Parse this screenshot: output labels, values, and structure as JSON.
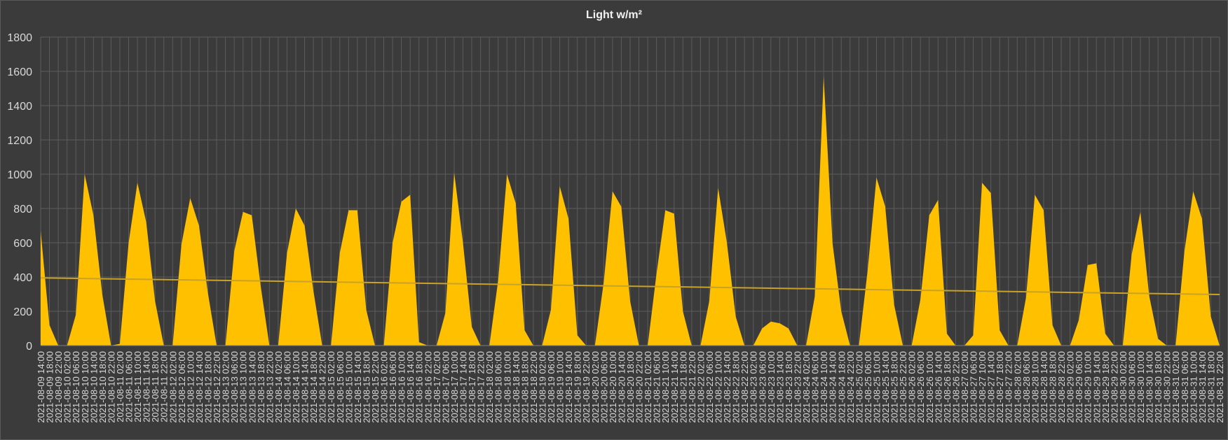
{
  "chart_data": {
    "type": "area",
    "title": "Light w/m²",
    "xlabel": "",
    "ylabel": "",
    "ylim": [
      0,
      1800
    ],
    "yticks": [
      0,
      200,
      400,
      600,
      800,
      1000,
      1200,
      1400,
      1600,
      1800
    ],
    "grid": true,
    "legend": "none",
    "colors": {
      "area": "#FFC000",
      "trendline": "#C9A227",
      "grid": "#5c5c5c",
      "text": "#d9d9d9",
      "background": "#3b3b3b"
    },
    "categories": [
      "2021-08-09 14:00",
      "2021-08-09 18:00",
      "2021-08-09 22:00",
      "2021-08-10 02:00",
      "2021-08-10 06:00",
      "2021-08-10 10:00",
      "2021-08-10 14:00",
      "2021-08-10 18:00",
      "2021-08-10 22:00",
      "2021-08-11 02:00",
      "2021-08-11 06:00",
      "2021-08-11 10:00",
      "2021-08-11 14:00",
      "2021-08-11 18:00",
      "2021-08-11 22:00",
      "2021-08-12 02:00",
      "2021-08-12 06:00",
      "2021-08-12 10:00",
      "2021-08-12 14:00",
      "2021-08-12 18:00",
      "2021-08-12 22:00",
      "2021-08-13 02:00",
      "2021-08-13 06:00",
      "2021-08-13 10:00",
      "2021-08-13 14:00",
      "2021-08-13 18:00",
      "2021-08-13 22:00",
      "2021-08-14 02:00",
      "2021-08-14 06:00",
      "2021-08-14 10:00",
      "2021-08-14 14:00",
      "2021-08-14 18:00",
      "2021-08-14 22:00",
      "2021-08-15 02:00",
      "2021-08-15 06:00",
      "2021-08-15 10:00",
      "2021-08-15 14:00",
      "2021-08-15 18:00",
      "2021-08-15 22:00",
      "2021-08-16 02:00",
      "2021-08-16 06:00",
      "2021-08-16 10:00",
      "2021-08-16 14:00",
      "2021-08-16 18:00",
      "2021-08-16 22:00",
      "2021-08-17 02:00",
      "2021-08-17 06:00",
      "2021-08-17 10:00",
      "2021-08-17 14:00",
      "2021-08-17 18:00",
      "2021-08-17 22:00",
      "2021-08-18 02:00",
      "2021-08-18 06:00",
      "2021-08-18 10:00",
      "2021-08-18 14:00",
      "2021-08-18 18:00",
      "2021-08-18 22:00",
      "2021-08-19 02:00",
      "2021-08-19 06:00",
      "2021-08-19 10:00",
      "2021-08-19 14:00",
      "2021-08-19 18:00",
      "2021-08-19 22:00",
      "2021-08-20 02:00",
      "2021-08-20 06:00",
      "2021-08-20 10:00",
      "2021-08-20 14:00",
      "2021-08-20 18:00",
      "2021-08-20 22:00",
      "2021-08-21 02:00",
      "2021-08-21 06:00",
      "2021-08-21 10:00",
      "2021-08-21 14:00",
      "2021-08-21 18:00",
      "2021-08-21 22:00",
      "2021-08-22 02:00",
      "2021-08-22 06:00",
      "2021-08-22 10:00",
      "2021-08-22 14:00",
      "2021-08-22 18:00",
      "2021-08-22 22:00",
      "2021-08-23 02:00",
      "2021-08-23 06:00",
      "2021-08-23 10:00",
      "2021-08-23 14:00",
      "2021-08-23 18:00",
      "2021-08-23 22:00",
      "2021-08-24 02:00",
      "2021-08-24 06:00",
      "2021-08-24 10:00",
      "2021-08-24 14:00",
      "2021-08-24 18:00",
      "2021-08-24 22:00",
      "2021-08-25 02:00",
      "2021-08-25 06:00",
      "2021-08-25 10:00",
      "2021-08-25 14:00",
      "2021-08-25 18:00",
      "2021-08-25 22:00",
      "2021-08-26 02:00",
      "2021-08-26 06:00",
      "2021-08-26 10:00",
      "2021-08-26 14:00",
      "2021-08-26 18:00",
      "2021-08-26 22:00",
      "2021-08-27 02:00",
      "2021-08-27 06:00",
      "2021-08-27 10:00",
      "2021-08-27 14:00",
      "2021-08-27 18:00",
      "2021-08-27 22:00",
      "2021-08-28 02:00",
      "2021-08-28 06:00",
      "2021-08-28 10:00",
      "2021-08-28 14:00",
      "2021-08-28 18:00",
      "2021-08-28 22:00",
      "2021-08-29 02:00",
      "2021-08-29 06:00",
      "2021-08-29 10:00",
      "2021-08-29 14:00",
      "2021-08-29 18:00",
      "2021-08-29 22:00",
      "2021-08-30 02:00",
      "2021-08-30 06:00",
      "2021-08-30 10:00",
      "2021-08-30 14:00",
      "2021-08-30 18:00",
      "2021-08-30 22:00",
      "2021-08-31 02:00",
      "2021-08-31 06:00",
      "2021-08-31 10:00",
      "2021-08-31 14:00",
      "2021-08-31 18:00",
      "2021-08-31 22:00"
    ],
    "series": [
      {
        "values": [
          670,
          120,
          0,
          0,
          180,
          1000,
          760,
          300,
          0,
          10,
          600,
          950,
          720,
          260,
          0,
          0,
          590,
          860,
          700,
          310,
          0,
          0,
          550,
          780,
          760,
          350,
          0,
          0,
          540,
          800,
          700,
          320,
          0,
          0,
          540,
          790,
          790,
          210,
          0,
          0,
          600,
          840,
          880,
          20,
          0,
          0,
          190,
          1010,
          600,
          110,
          0,
          0,
          380,
          1000,
          830,
          90,
          0,
          0,
          210,
          930,
          740,
          60,
          0,
          0,
          370,
          900,
          810,
          260,
          0,
          0,
          420,
          790,
          770,
          200,
          0,
          0,
          260,
          920,
          600,
          170,
          0,
          0,
          100,
          140,
          130,
          100,
          0,
          0,
          290,
          1570,
          600,
          200,
          0,
          0,
          440,
          980,
          810,
          240,
          0,
          0,
          270,
          760,
          850,
          70,
          0,
          0,
          60,
          950,
          890,
          90,
          0,
          0,
          280,
          880,
          790,
          120,
          0,
          0,
          150,
          470,
          480,
          70,
          0,
          0,
          530,
          780,
          290,
          40,
          0,
          0,
          550,
          900,
          740,
          170,
          0
        ]
      }
    ],
    "trendline": {
      "type": "linear",
      "start": 395,
      "end": 298
    }
  }
}
